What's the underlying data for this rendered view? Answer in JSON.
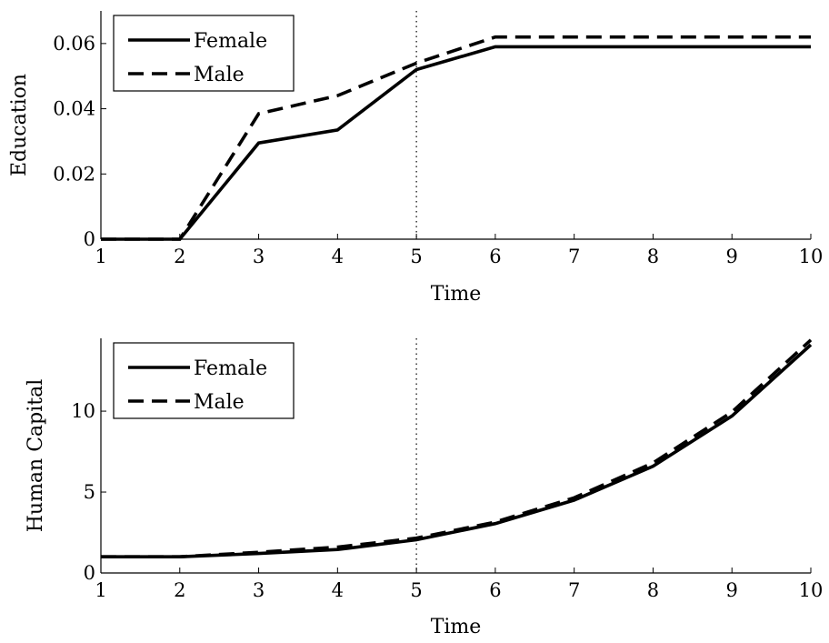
{
  "chart_data": [
    {
      "type": "line",
      "xlabel": "Time",
      "ylabel": "Education",
      "xlim": [
        1,
        10
      ],
      "ylim": [
        0,
        0.07
      ],
      "xticks": [
        1,
        2,
        3,
        4,
        5,
        6,
        7,
        8,
        9,
        10
      ],
      "xtick_labels": [
        "1",
        "2",
        "3",
        "4",
        "5",
        "6",
        "7",
        "8",
        "9",
        "10"
      ],
      "yticks": [
        0,
        0.02,
        0.04,
        0.06
      ],
      "ytick_labels": [
        "0",
        "0.02",
        "0.04",
        "0.06"
      ],
      "vline_x": 5,
      "legend_position": "top-left",
      "grid": false,
      "x": [
        1,
        2,
        3,
        4,
        5,
        6,
        7,
        8,
        9,
        10
      ],
      "series": [
        {
          "name": "Female",
          "style": "solid",
          "values": [
            0,
            0,
            0.0295,
            0.0335,
            0.052,
            0.059,
            0.059,
            0.059,
            0.059,
            0.059
          ]
        },
        {
          "name": "Male",
          "style": "dashed",
          "values": [
            0,
            0,
            0.0385,
            0.044,
            0.054,
            0.062,
            0.062,
            0.062,
            0.062,
            0.062
          ]
        }
      ]
    },
    {
      "type": "line",
      "xlabel": "Time",
      "ylabel": "Human Capital",
      "xlim": [
        1,
        10
      ],
      "ylim": [
        0,
        14.5
      ],
      "xticks": [
        1,
        2,
        3,
        4,
        5,
        6,
        7,
        8,
        9,
        10
      ],
      "xtick_labels": [
        "1",
        "2",
        "3",
        "4",
        "5",
        "6",
        "7",
        "8",
        "9",
        "10"
      ],
      "yticks": [
        0,
        5,
        10
      ],
      "ytick_labels": [
        "0",
        "5",
        "10"
      ],
      "vline_x": 5,
      "legend_position": "top-left",
      "grid": false,
      "x": [
        1,
        2,
        3,
        4,
        5,
        6,
        7,
        8,
        9,
        10
      ],
      "series": [
        {
          "name": "Female",
          "style": "solid",
          "values": [
            1.0,
            1.0,
            1.2,
            1.45,
            2.05,
            3.05,
            4.5,
            6.6,
            9.7,
            14.1
          ]
        },
        {
          "name": "Male",
          "style": "dashed",
          "values": [
            1.0,
            1.0,
            1.28,
            1.6,
            2.15,
            3.15,
            4.65,
            6.8,
            9.95,
            14.4
          ]
        }
      ]
    }
  ]
}
